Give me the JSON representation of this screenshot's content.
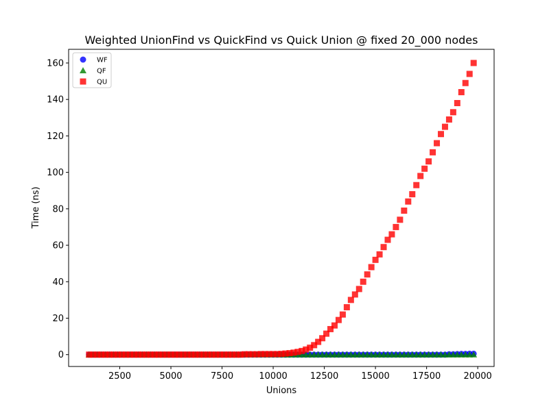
{
  "chart_data": {
    "type": "scatter",
    "title": "Weighted UnionFind vs QuickFind vs Quick Union @ fixed 20_000 nodes",
    "xlabel": "Unions",
    "ylabel": "Time (ns)",
    "xlim": [
      0,
      20800
    ],
    "ylim": [
      -6.5,
      167.5
    ],
    "x_ticks": [
      2500,
      5000,
      7500,
      10000,
      12500,
      15000,
      17500,
      20000
    ],
    "x_tick_labels": [
      "2500",
      "5000",
      "7500",
      "10000",
      "12500",
      "15000",
      "17500",
      "20000"
    ],
    "y_ticks": [
      0,
      20,
      40,
      60,
      80,
      100,
      120,
      140,
      160
    ],
    "y_tick_labels": [
      "0",
      "20",
      "40",
      "60",
      "80",
      "100",
      "120",
      "140",
      "160"
    ],
    "grid": false,
    "legend_position": "top-left",
    "x": [
      1000,
      1200,
      1400,
      1600,
      1800,
      2000,
      2200,
      2400,
      2600,
      2800,
      3000,
      3200,
      3400,
      3600,
      3800,
      4000,
      4200,
      4400,
      4600,
      4800,
      5000,
      5200,
      5400,
      5600,
      5800,
      6000,
      6200,
      6400,
      6600,
      6800,
      7000,
      7200,
      7400,
      7600,
      7800,
      8000,
      8200,
      8400,
      8600,
      8800,
      9000,
      9200,
      9400,
      9600,
      9800,
      10000,
      10200,
      10400,
      10600,
      10800,
      11000,
      11200,
      11400,
      11600,
      11800,
      12000,
      12200,
      12400,
      12600,
      12800,
      13000,
      13200,
      13400,
      13600,
      13800,
      14000,
      14200,
      14400,
      14600,
      14800,
      15000,
      15200,
      15400,
      15600,
      15800,
      16000,
      16200,
      16400,
      16600,
      16800,
      17000,
      17200,
      17400,
      17600,
      17800,
      18000,
      18200,
      18400,
      18600,
      18800,
      19000,
      19200,
      19400,
      19600,
      19800
    ],
    "series": [
      {
        "name": "WF",
        "color": "#0000ff",
        "marker": "circle",
        "values": [
          0,
          0,
          0,
          0,
          0,
          0,
          0,
          0,
          0,
          0,
          0,
          0,
          0,
          0,
          0,
          0,
          0,
          0,
          0,
          0,
          0,
          0,
          0,
          0,
          0,
          0,
          0,
          0,
          0,
          0,
          0,
          0,
          0,
          0,
          0,
          0,
          0,
          0,
          0,
          0,
          0,
          0,
          0,
          0,
          0,
          0,
          0,
          0,
          0,
          0,
          0,
          0,
          0,
          0,
          0,
          0,
          0,
          0,
          0,
          0,
          0,
          0,
          0,
          0,
          0,
          0,
          0,
          0,
          0,
          0,
          0,
          0,
          0,
          0,
          0,
          0,
          0,
          0,
          0,
          0,
          0,
          0,
          0,
          0,
          0,
          0,
          0,
          0,
          0.2,
          0.2,
          0.3,
          0.4,
          0.4,
          0.5,
          0.5
        ]
      },
      {
        "name": "QF",
        "color": "#008000",
        "marker": "triangle",
        "values": [
          0,
          0,
          0,
          0,
          0,
          0,
          0,
          0,
          0,
          0,
          0,
          0,
          0,
          0,
          0,
          0,
          0,
          0,
          0,
          0,
          0,
          0,
          0,
          0,
          0,
          0,
          0,
          0,
          0,
          0,
          0,
          0,
          0,
          0,
          0,
          0,
          0,
          0,
          0,
          0,
          0,
          0,
          0,
          0,
          0,
          0,
          0,
          0,
          0,
          0,
          0,
          0,
          0,
          0,
          0,
          0,
          0,
          0,
          0,
          0,
          0,
          0,
          0,
          0,
          0,
          0,
          0,
          0,
          0,
          0,
          0,
          0,
          0,
          0,
          0,
          0,
          0,
          0,
          0,
          0,
          0,
          0,
          0,
          0,
          0,
          0,
          0,
          0,
          0,
          0,
          0,
          0,
          0,
          0,
          0
        ]
      },
      {
        "name": "QU",
        "color": "#ff0000",
        "marker": "square",
        "values": [
          0,
          0,
          0,
          0,
          0,
          0,
          0,
          0,
          0,
          0,
          0,
          0,
          0,
          0,
          0,
          0,
          0,
          0,
          0,
          0,
          0,
          0,
          0,
          0,
          0,
          0,
          0,
          0,
          0,
          0,
          0,
          0,
          0,
          0,
          0,
          0,
          0,
          0,
          0.2,
          0.2,
          0.2,
          0.2,
          0.3,
          0.3,
          0.3,
          0.3,
          0.3,
          0.4,
          0.6,
          0.8,
          1.1,
          1.5,
          2,
          2.8,
          3.8,
          5.2,
          7,
          9,
          11.5,
          14,
          16,
          19,
          22,
          26,
          30,
          33,
          36,
          40,
          44,
          48,
          52,
          55,
          59,
          63,
          66,
          70,
          74,
          79,
          84,
          88,
          93,
          98,
          102,
          106,
          111,
          116,
          121,
          125,
          129,
          133,
          138,
          144,
          149,
          154,
          160
        ]
      }
    ]
  }
}
